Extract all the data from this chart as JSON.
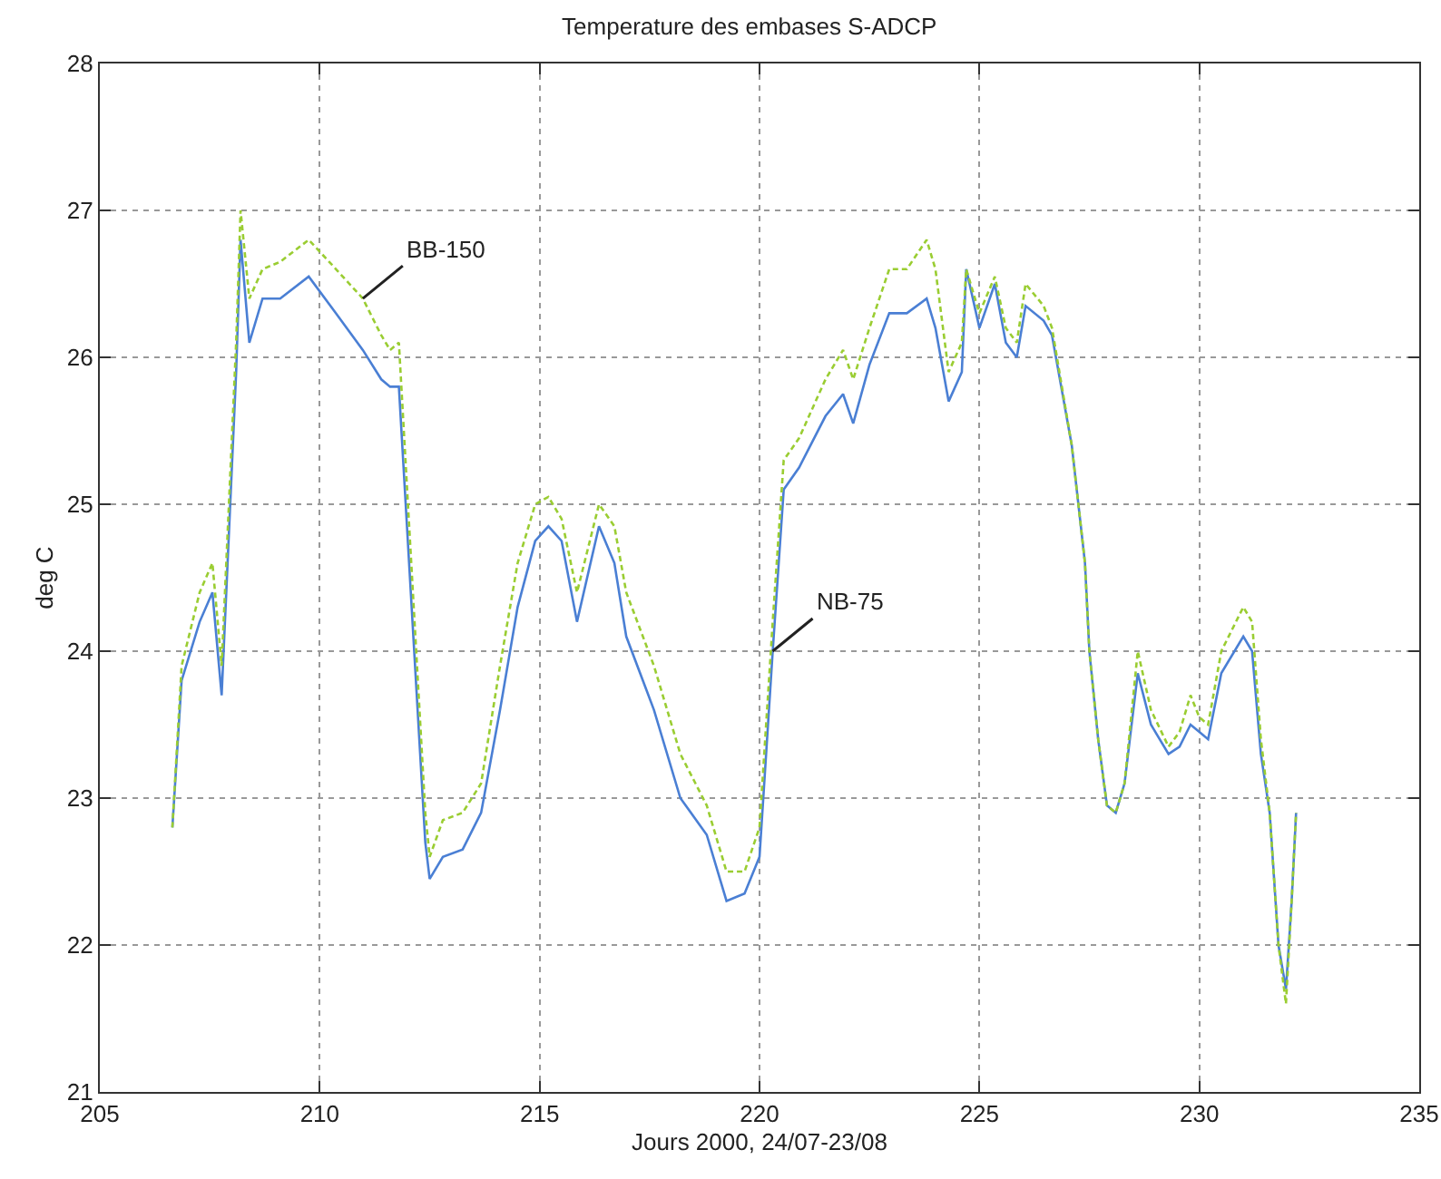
{
  "chart_data": {
    "type": "line",
    "title": "Temperature des embases S-ADCP",
    "xlabel": "Jours 2000, 24/07-23/08",
    "ylabel": "deg C",
    "xlim": [
      205,
      235
    ],
    "xticks": [
      205,
      210,
      215,
      220,
      225,
      230,
      235
    ],
    "ylim": [
      21,
      28
    ],
    "yticks": [
      21,
      22,
      23,
      24,
      25,
      26,
      27,
      28
    ],
    "grid": true,
    "legend": false,
    "marker": "none",
    "series": [
      {
        "name": "NB-75",
        "color": "#4a7fd4",
        "line_style": "solid",
        "x": [
          206.65,
          206.86,
          207.27,
          207.56,
          207.77,
          208.1,
          208.2,
          208.4,
          208.7,
          209.1,
          209.75,
          210.37,
          210.98,
          211.4,
          211.6,
          211.8,
          212.4,
          212.5,
          212.8,
          213.25,
          213.67,
          214.1,
          214.5,
          214.9,
          215.2,
          215.5,
          215.85,
          216.35,
          216.7,
          216.97,
          217.6,
          218.2,
          218.8,
          219.25,
          219.66,
          220,
          220.3,
          220.55,
          220.9,
          221.5,
          221.9,
          222.13,
          222.5,
          222.95,
          223.35,
          223.8,
          224.0,
          224.3,
          224.6,
          224.7,
          225.0,
          225.35,
          225.6,
          225.85,
          226.05,
          226.46,
          226.65,
          227.1,
          227.4,
          227.5,
          227.7,
          227.9,
          228.1,
          228.3,
          228.6,
          228.9,
          229.3,
          229.55,
          229.8,
          230.0,
          230.2,
          230.5,
          231.0,
          231.2,
          231.4,
          231.6,
          231.8,
          231.97,
          232.1,
          232.2
        ],
        "values": [
          22.8,
          23.8,
          24.2,
          24.4,
          23.7,
          25.9,
          26.8,
          26.1,
          26.4,
          26.4,
          26.55,
          26.3,
          26.05,
          25.85,
          25.8,
          25.8,
          22.7,
          22.45,
          22.6,
          22.65,
          22.9,
          23.6,
          24.3,
          24.75,
          24.85,
          24.75,
          24.2,
          24.85,
          24.6,
          24.1,
          23.6,
          23.0,
          22.75,
          22.3,
          22.35,
          22.6,
          24.0,
          25.1,
          25.25,
          25.6,
          25.75,
          25.55,
          25.95,
          26.3,
          26.3,
          26.4,
          26.2,
          25.7,
          25.9,
          26.6,
          26.2,
          26.5,
          26.1,
          26.0,
          26.35,
          26.25,
          26.15,
          25.4,
          24.6,
          24.0,
          23.4,
          22.95,
          22.9,
          23.1,
          23.85,
          23.5,
          23.3,
          23.35,
          23.5,
          23.45,
          23.4,
          23.85,
          24.1,
          24.0,
          23.3,
          22.9,
          22.0,
          21.7,
          22.3,
          22.9
        ]
      },
      {
        "name": "BB-150",
        "color": "#9acd32",
        "line_style": "dashed",
        "x": [
          206.65,
          206.86,
          207.27,
          207.56,
          207.77,
          208.1,
          208.2,
          208.4,
          208.7,
          209.1,
          209.75,
          210.37,
          210.98,
          211.4,
          211.6,
          211.8,
          212.4,
          212.5,
          212.8,
          213.25,
          213.67,
          214.1,
          214.5,
          214.9,
          215.2,
          215.5,
          215.85,
          216.35,
          216.7,
          216.97,
          217.6,
          218.2,
          218.8,
          219.25,
          219.66,
          220,
          220.3,
          220.55,
          220.9,
          221.5,
          221.9,
          222.13,
          222.5,
          222.95,
          223.35,
          223.8,
          224.0,
          224.3,
          224.6,
          224.7,
          225.0,
          225.35,
          225.6,
          225.85,
          226.05,
          226.46,
          226.65,
          227.1,
          227.4,
          227.5,
          227.7,
          227.9,
          228.1,
          228.3,
          228.6,
          228.9,
          229.3,
          229.55,
          229.8,
          230.0,
          230.2,
          230.5,
          231.0,
          231.2,
          231.4,
          231.6,
          231.8,
          231.97,
          232.1,
          232.2
        ],
        "values": [
          22.8,
          23.9,
          24.4,
          24.6,
          23.9,
          26.1,
          27.0,
          26.4,
          26.6,
          26.65,
          26.8,
          26.6,
          26.4,
          26.15,
          26.05,
          26.1,
          22.9,
          22.6,
          22.85,
          22.9,
          23.1,
          23.9,
          24.6,
          25.0,
          25.05,
          24.9,
          24.4,
          25.0,
          24.85,
          24.4,
          23.9,
          23.3,
          22.95,
          22.5,
          22.5,
          22.8,
          24.2,
          25.3,
          25.45,
          25.85,
          26.05,
          25.85,
          26.2,
          26.6,
          26.6,
          26.8,
          26.6,
          25.9,
          26.1,
          26.6,
          26.3,
          26.55,
          26.2,
          26.1,
          26.5,
          26.35,
          26.2,
          25.4,
          24.6,
          24.0,
          23.4,
          22.95,
          22.9,
          23.1,
          24.0,
          23.6,
          23.35,
          23.45,
          23.7,
          23.55,
          23.5,
          24.0,
          24.3,
          24.2,
          23.4,
          22.9,
          22.0,
          21.6,
          22.3,
          22.9
        ]
      }
    ]
  }
}
